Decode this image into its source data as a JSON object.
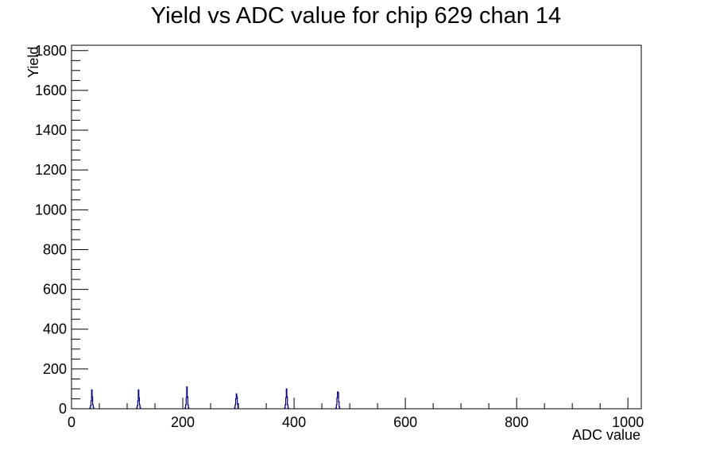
{
  "chart_data": {
    "type": "histogram",
    "title": "Yield vs ADC value for chip 629 chan 14",
    "xlabel": "ADC value",
    "ylabel": "Yield",
    "xlim": [
      0,
      1024
    ],
    "ylim": [
      0,
      1827
    ],
    "x_ticks": [
      "0",
      "200",
      "400",
      "600",
      "800",
      "1000"
    ],
    "y_ticks": [
      "0",
      "200",
      "400",
      "600",
      "800",
      "1000",
      "1200",
      "1400",
      "1600",
      "1800"
    ],
    "grid": false,
    "legend": "none",
    "colors": {
      "line": "#000080",
      "frame": "#000000",
      "background": "#ffffff"
    },
    "series": [
      {
        "bins": [
          [
            33,
            5
          ],
          [
            34,
            15
          ],
          [
            35,
            40
          ],
          [
            36,
            95
          ],
          [
            37,
            60
          ],
          [
            38,
            20
          ],
          [
            39,
            6
          ],
          [
            117,
            5
          ],
          [
            118,
            15
          ],
          [
            119,
            40
          ],
          [
            120,
            95
          ],
          [
            121,
            55
          ],
          [
            122,
            20
          ],
          [
            123,
            6
          ],
          [
            204,
            5
          ],
          [
            205,
            20
          ],
          [
            206,
            55
          ],
          [
            207,
            110
          ],
          [
            208,
            60
          ],
          [
            209,
            20
          ],
          [
            210,
            5
          ],
          [
            293,
            5
          ],
          [
            294,
            20
          ],
          [
            295,
            50
          ],
          [
            296,
            75
          ],
          [
            297,
            60
          ],
          [
            298,
            25
          ],
          [
            299,
            6
          ],
          [
            383,
            5
          ],
          [
            384,
            20
          ],
          [
            385,
            55
          ],
          [
            386,
            100
          ],
          [
            387,
            60
          ],
          [
            388,
            20
          ],
          [
            389,
            5
          ],
          [
            475,
            5
          ],
          [
            476,
            20
          ],
          [
            477,
            55
          ],
          [
            478,
            85
          ],
          [
            479,
            80
          ],
          [
            480,
            35
          ],
          [
            481,
            8
          ]
        ]
      }
    ]
  }
}
